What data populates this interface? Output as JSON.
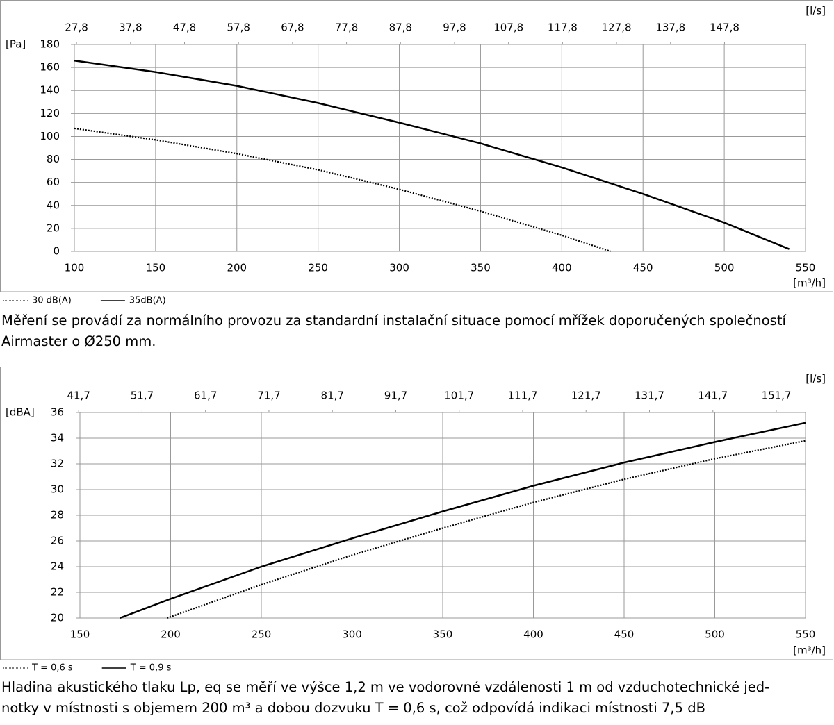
{
  "chart_data": [
    {
      "type": "line",
      "y_label": "[Pa]",
      "x_label": "[m³/h]",
      "x2_label": "[l/s]",
      "caption": "Měření se provádí za normálního provozu za standardní instalační situace pomocí mřížek doporučených společností Airmaster o Ø250 mm.",
      "xlim": [
        100,
        550
      ],
      "xticks": [
        100,
        150,
        200,
        250,
        300,
        350,
        400,
        450,
        500,
        550
      ],
      "ylim": [
        0,
        180
      ],
      "yticks": [
        0,
        20,
        40,
        60,
        80,
        100,
        120,
        140,
        160,
        180
      ],
      "x2lim": [
        27.4,
        162.8
      ],
      "x2ticks": [
        {
          "value": 27.8,
          "label": "27,8"
        },
        {
          "value": 37.8,
          "label": "37,8"
        },
        {
          "value": 47.8,
          "label": "47,8"
        },
        {
          "value": 57.8,
          "label": "57,8"
        },
        {
          "value": 67.8,
          "label": "67,8"
        },
        {
          "value": 77.8,
          "label": "77,8"
        },
        {
          "value": 87.8,
          "label": "87,8"
        },
        {
          "value": 97.8,
          "label": "97,8"
        },
        {
          "value": 107.8,
          "label": "107,8"
        },
        {
          "value": 117.8,
          "label": "117,8"
        },
        {
          "value": 127.8,
          "label": "127,8"
        },
        {
          "value": 137.8,
          "label": "137,8"
        },
        {
          "value": 147.8,
          "label": "147,8"
        }
      ],
      "grid": true,
      "series": [
        {
          "name": "30 dB(A)",
          "color": "#000000",
          "style": "dotted",
          "x": [
            100,
            150,
            200,
            250,
            300,
            350,
            400,
            430
          ],
          "values": [
            107,
            97,
            85,
            71,
            54,
            35,
            14,
            0
          ]
        },
        {
          "name": "35dB(A)",
          "color": "#000000",
          "style": "solid",
          "x": [
            100,
            150,
            200,
            250,
            300,
            350,
            400,
            450,
            500,
            540
          ],
          "values": [
            166,
            156,
            144,
            129,
            112,
            94,
            73,
            50,
            25,
            2
          ]
        }
      ]
    },
    {
      "type": "line",
      "y_label": "[dBA]",
      "x_label": "[m³/h]",
      "x2_label": "[l/s]",
      "caption": [
        "Hladina akustického tlaku Lp, eq se měří ve výšce 1,2 m ve vodorovné vzdálenosti 1 m od vzduchotechnické jed-",
        "notky v místnosti s objemem 200 m³ a dobou dozvuku T = 0,6 s, což odpovídá indikaci místnosti 7,5 dB"
      ],
      "xlim": [
        150,
        550
      ],
      "xticks": [
        150,
        200,
        250,
        300,
        350,
        400,
        450,
        500,
        550
      ],
      "ylim": [
        20,
        36
      ],
      "yticks": [
        20,
        22,
        24,
        26,
        28,
        30,
        32,
        34,
        36
      ],
      "x2lim": [
        41.9,
        156.3
      ],
      "x2ticks": [
        {
          "value": 41.7,
          "label": "41,7"
        },
        {
          "value": 51.7,
          "label": "51,7"
        },
        {
          "value": 61.7,
          "label": "61,7"
        },
        {
          "value": 71.7,
          "label": "71,7"
        },
        {
          "value": 81.7,
          "label": "81,7"
        },
        {
          "value": 91.7,
          "label": "91,7"
        },
        {
          "value": 101.7,
          "label": "101,7"
        },
        {
          "value": 111.7,
          "label": "111,7"
        },
        {
          "value": 121.7,
          "label": "121,7"
        },
        {
          "value": 131.7,
          "label": "131,7"
        },
        {
          "value": 141.7,
          "label": "141,7"
        },
        {
          "value": 151.7,
          "label": "151,7"
        }
      ],
      "grid": true,
      "series": [
        {
          "name": "T = 0,6 s",
          "color": "#000000",
          "style": "dotted",
          "x": [
            198,
            250,
            300,
            350,
            400,
            450,
            500,
            550
          ],
          "values": [
            20,
            22.6,
            24.9,
            27,
            29,
            30.8,
            32.4,
            33.8
          ]
        },
        {
          "name": "T = 0,9 s",
          "color": "#000000",
          "style": "solid",
          "x": [
            172,
            200,
            250,
            300,
            350,
            400,
            450,
            500,
            550
          ],
          "values": [
            20,
            21.5,
            24,
            26.2,
            28.3,
            30.3,
            32.1,
            33.7,
            35.2
          ]
        }
      ]
    }
  ]
}
